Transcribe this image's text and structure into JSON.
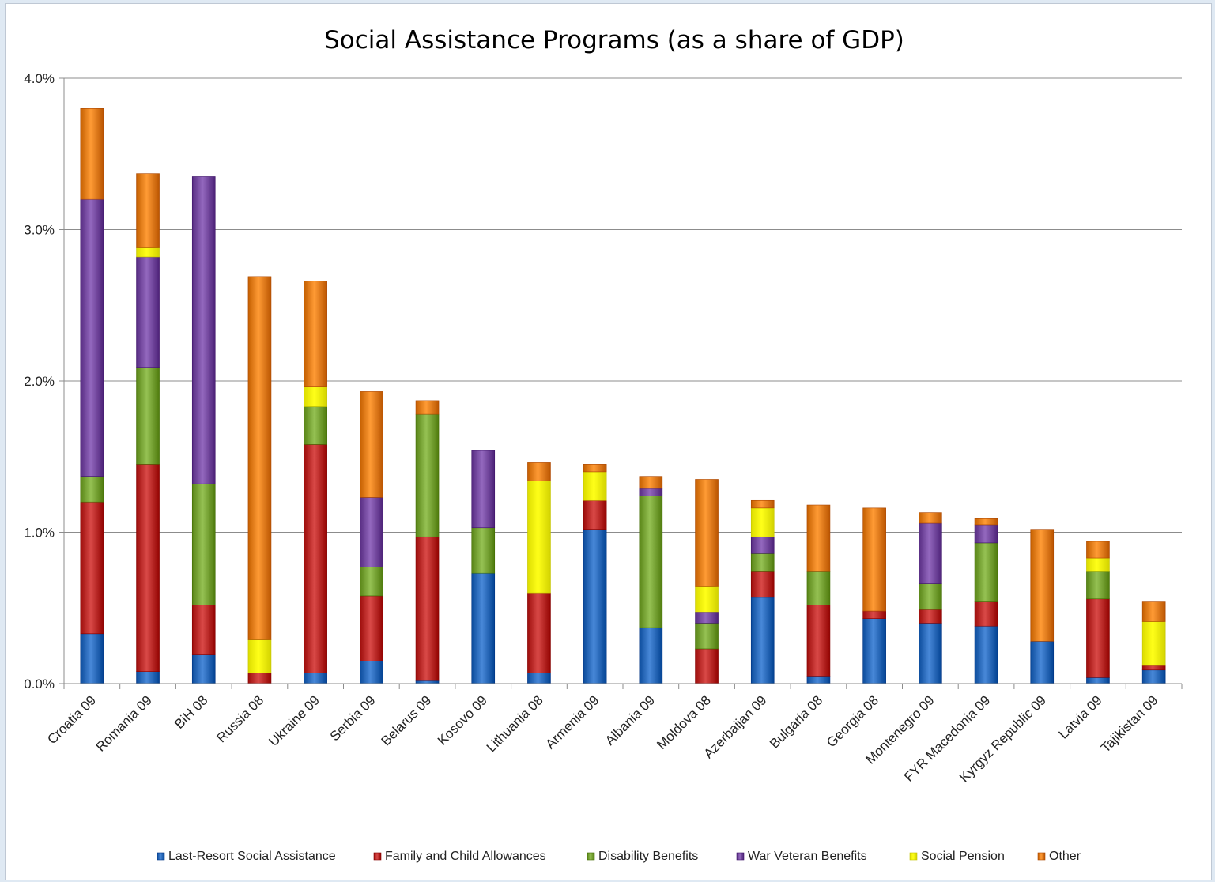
{
  "chart_data": {
    "type": "bar",
    "stacked": true,
    "title": "Social Assistance Programs (as a share of GDP)",
    "xlabel": "",
    "ylabel": "",
    "ylim": [
      0,
      4.0
    ],
    "yticks": [
      0,
      1.0,
      2.0,
      3.0,
      4.0
    ],
    "ytick_labels": [
      "0.0%",
      "1.0%",
      "2.0%",
      "3.0%",
      "4.0%"
    ],
    "grid": true,
    "legend_position": "bottom",
    "categories": [
      "Croatia 09",
      "Romania 09",
      "BiH 08",
      "Russia 08",
      "Ukraine 09",
      "Serbia 09",
      "Belarus 09",
      "Kosovo 09",
      "Lithuania 08",
      "Armenia 09",
      "Albania 09",
      "Moldova 08",
      "Azerbaijan 09",
      "Bulgaria 08",
      "Georgia 08",
      "Montenegro 09",
      "FYR Macedonia 09",
      "Kyrgyz Republic 09",
      "Latvia 09",
      "Tajikistan 09"
    ],
    "series": [
      {
        "name": "Last-Resort Social Assistance",
        "color": "#2f6fbf",
        "values": [
          0.33,
          0.08,
          0.19,
          0.0,
          0.07,
          0.15,
          0.02,
          0.73,
          0.07,
          1.02,
          0.37,
          0.0,
          0.57,
          0.05,
          0.43,
          0.4,
          0.38,
          0.28,
          0.04,
          0.09
        ]
      },
      {
        "name": "Family and Child Allowances",
        "color": "#c0302e",
        "values": [
          0.87,
          1.37,
          0.33,
          0.07,
          1.51,
          0.43,
          0.95,
          0.0,
          0.53,
          0.19,
          0.0,
          0.23,
          0.17,
          0.47,
          0.05,
          0.09,
          0.16,
          0.0,
          0.52,
          0.03
        ]
      },
      {
        "name": "Disability Benefits",
        "color": "#7ca83a",
        "values": [
          0.17,
          0.64,
          0.8,
          0.0,
          0.25,
          0.19,
          0.81,
          0.3,
          0.0,
          0.0,
          0.87,
          0.17,
          0.12,
          0.22,
          0.0,
          0.17,
          0.39,
          0.0,
          0.18,
          0.0
        ]
      },
      {
        "name": "War Veteran Benefits",
        "color": "#7a4fa5",
        "values": [
          1.83,
          0.73,
          2.03,
          0.0,
          0.0,
          0.46,
          0.0,
          0.51,
          0.0,
          0.0,
          0.05,
          0.07,
          0.11,
          0.0,
          0.0,
          0.4,
          0.12,
          0.0,
          0.0,
          0.0
        ]
      },
      {
        "name": "Social Pension",
        "color": "#ffff00",
        "values": [
          0.0,
          0.06,
          0.0,
          0.22,
          0.13,
          0.0,
          0.0,
          0.0,
          0.74,
          0.19,
          0.0,
          0.17,
          0.19,
          0.0,
          0.0,
          0.0,
          0.0,
          0.0,
          0.09,
          0.29
        ]
      },
      {
        "name": "Other",
        "color": "#e7821c",
        "values": [
          0.6,
          0.49,
          0.0,
          2.4,
          0.7,
          0.7,
          0.09,
          0.0,
          0.12,
          0.05,
          0.08,
          0.71,
          0.05,
          0.44,
          0.68,
          0.07,
          0.04,
          0.74,
          0.11,
          0.13
        ]
      }
    ]
  }
}
